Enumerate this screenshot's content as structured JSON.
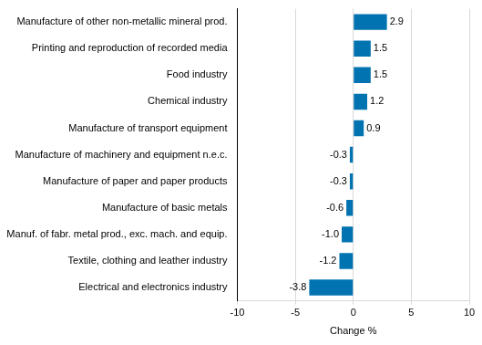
{
  "chart_data": {
    "type": "bar",
    "orientation": "horizontal",
    "categories": [
      "Manufacture of other non-metallic mineral prod.",
      "Printing and reproduction of recorded media",
      "Food industry",
      "Chemical industry",
      "Manufacture of transport equipment",
      "Manufacture of machinery and equipment n.e.c.",
      "Manufacture of paper and paper products",
      "Manufacture of basic metals",
      "Manuf. of fabr. metal prod., exc. mach. and equip.",
      "Textile, clothing and leather industry",
      "Electrical and electronics industry"
    ],
    "values": [
      2.9,
      1.5,
      1.5,
      1.2,
      0.9,
      -0.3,
      -0.3,
      -0.6,
      -1.0,
      -1.2,
      -3.8
    ],
    "value_labels": [
      "2.9",
      "1.5",
      "1.5",
      "1.2",
      "0.9",
      "-0.3",
      "-0.3",
      "-0.6",
      "-1.0",
      "-1.2",
      "-3.8"
    ],
    "color": "#0073b0",
    "x_label": "Change %",
    "xlim": [
      -10,
      10
    ],
    "xticks": [
      -10,
      -5,
      0,
      5,
      10
    ],
    "grid": true,
    "data_labels": true
  }
}
